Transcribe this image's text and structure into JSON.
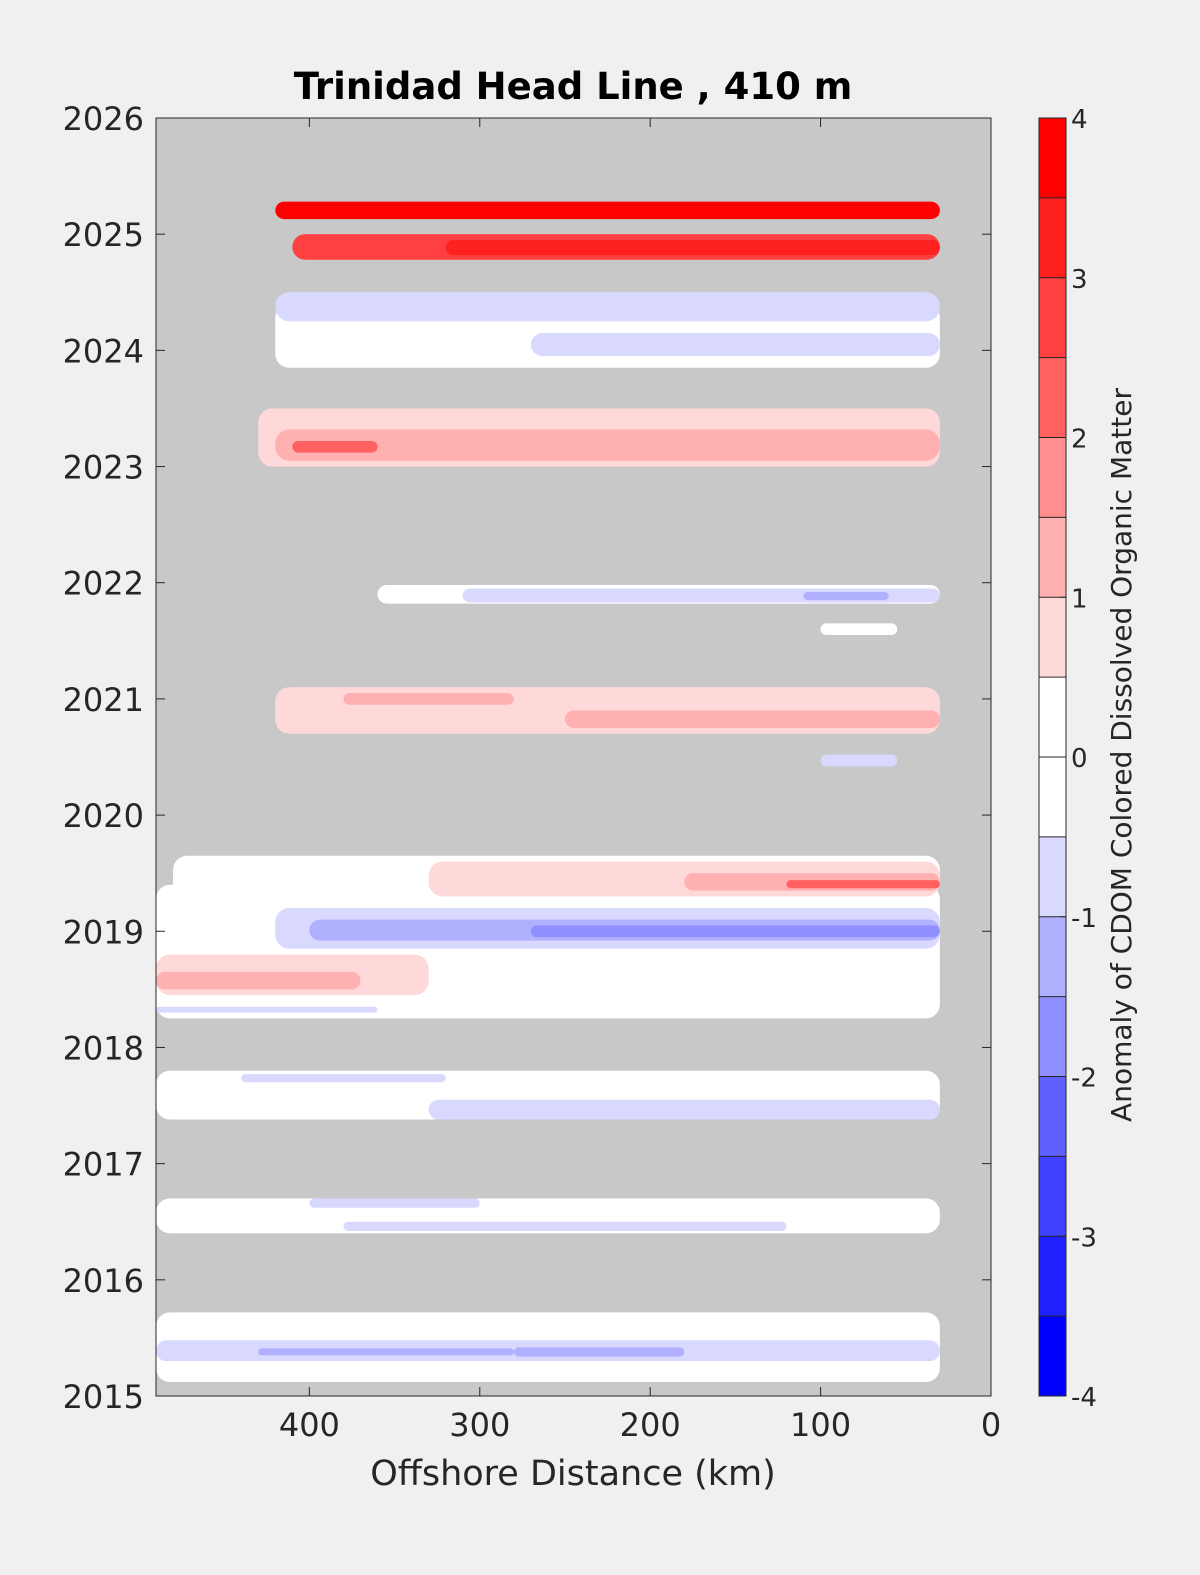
{
  "chart_data": {
    "type": "heatmap",
    "title": "Trinidad Head Line , 410 m",
    "xlabel": "Offshore Distance (km)",
    "ylabel": "",
    "xlim": [
      490,
      0
    ],
    "ylim": [
      2015,
      2026
    ],
    "x_reversed": true,
    "x_ticks": [
      400,
      300,
      200,
      100,
      0
    ],
    "y_ticks": [
      2015,
      2016,
      2017,
      2018,
      2019,
      2020,
      2021,
      2022,
      2023,
      2024,
      2025,
      2026
    ],
    "colorbar": {
      "label": "Anomaly of CDOM Colored Dissolved Organic Matter",
      "ticks": [
        4,
        3,
        2,
        1,
        0,
        -1,
        -2,
        -3,
        -4
      ],
      "levels": [
        {
          "min": 3.5,
          "max": 4.0,
          "color": "#ff0000"
        },
        {
          "min": 3.0,
          "max": 3.5,
          "color": "#ff2020"
        },
        {
          "min": 2.5,
          "max": 3.0,
          "color": "#ff4040"
        },
        {
          "min": 2.0,
          "max": 2.5,
          "color": "#ff6060"
        },
        {
          "min": 1.5,
          "max": 2.0,
          "color": "#ff8f8f"
        },
        {
          "min": 1.0,
          "max": 1.5,
          "color": "#ffb0b0"
        },
        {
          "min": 0.5,
          "max": 1.0,
          "color": "#ffd9d9"
        },
        {
          "min": 0.0,
          "max": 0.5,
          "color": "#ffffff"
        },
        {
          "min": -0.5,
          "max": 0.0,
          "color": "#ffffff"
        },
        {
          "min": -1.0,
          "max": -0.5,
          "color": "#d9d9ff"
        },
        {
          "min": -1.5,
          "max": -1.0,
          "color": "#b0b0ff"
        },
        {
          "min": -2.0,
          "max": -1.5,
          "color": "#8f8fff"
        },
        {
          "min": -2.5,
          "max": -2.0,
          "color": "#6060ff"
        },
        {
          "min": -3.0,
          "max": -2.5,
          "color": "#4040ff"
        },
        {
          "min": -3.5,
          "max": -3.0,
          "color": "#2020ff"
        },
        {
          "min": -4.0,
          "max": -3.5,
          "color": "#0000ff"
        }
      ]
    },
    "no_data_color": "#c8c8c8",
    "bands": [
      {
        "t0": 2015.12,
        "t1": 2015.72,
        "x0": 490,
        "x1": 30,
        "value": -0.2
      },
      {
        "t0": 2015.3,
        "t1": 2015.48,
        "x0": 490,
        "x1": 30,
        "value": -0.7
      },
      {
        "t0": 2015.35,
        "t1": 2015.41,
        "x0": 430,
        "x1": 280,
        "value": -1.2
      },
      {
        "t0": 2015.34,
        "t1": 2015.42,
        "x0": 280,
        "x1": 180,
        "value": -1.2
      },
      {
        "t0": 2016.4,
        "t1": 2016.7,
        "x0": 490,
        "x1": 30,
        "value": 0.1
      },
      {
        "t0": 2016.42,
        "t1": 2016.5,
        "x0": 380,
        "x1": 120,
        "value": -0.6
      },
      {
        "t0": 2016.62,
        "t1": 2016.7,
        "x0": 400,
        "x1": 300,
        "value": -0.6
      },
      {
        "t0": 2017.38,
        "t1": 2017.8,
        "x0": 490,
        "x1": 30,
        "value": 0.1
      },
      {
        "t0": 2017.38,
        "t1": 2017.55,
        "x0": 330,
        "x1": 30,
        "value": -0.7
      },
      {
        "t0": 2017.7,
        "t1": 2017.77,
        "x0": 440,
        "x1": 320,
        "value": -0.6
      },
      {
        "t0": 2018.25,
        "t1": 2019.4,
        "x0": 490,
        "x1": 30,
        "value": 0.0
      },
      {
        "t0": 2018.3,
        "t1": 2018.35,
        "x0": 490,
        "x1": 360,
        "value": -0.6
      },
      {
        "t0": 2018.45,
        "t1": 2018.8,
        "x0": 490,
        "x1": 330,
        "value": 0.8
      },
      {
        "t0": 2018.5,
        "t1": 2018.65,
        "x0": 490,
        "x1": 370,
        "value": 1.2
      },
      {
        "t0": 2018.85,
        "t1": 2019.2,
        "x0": 420,
        "x1": 30,
        "value": -0.8
      },
      {
        "t0": 2018.92,
        "t1": 2019.1,
        "x0": 400,
        "x1": 30,
        "value": -1.3
      },
      {
        "t0": 2018.95,
        "t1": 2019.05,
        "x0": 270,
        "x1": 30,
        "value": -1.8
      },
      {
        "t0": 2019.3,
        "t1": 2019.65,
        "x0": 480,
        "x1": 30,
        "value": 0.1
      },
      {
        "t0": 2019.3,
        "t1": 2019.6,
        "x0": 330,
        "x1": 30,
        "value": 0.8
      },
      {
        "t0": 2019.35,
        "t1": 2019.5,
        "x0": 180,
        "x1": 30,
        "value": 1.3
      },
      {
        "t0": 2019.37,
        "t1": 2019.44,
        "x0": 120,
        "x1": 30,
        "value": 2.1
      },
      {
        "t0": 2020.42,
        "t1": 2020.52,
        "x0": 100,
        "x1": 55,
        "value": -0.7
      },
      {
        "t0": 2020.7,
        "t1": 2021.1,
        "x0": 420,
        "x1": 30,
        "value": 0.7
      },
      {
        "t0": 2020.75,
        "t1": 2020.9,
        "x0": 250,
        "x1": 30,
        "value": 1.2
      },
      {
        "t0": 2020.95,
        "t1": 2021.05,
        "x0": 380,
        "x1": 280,
        "value": 1.2
      },
      {
        "t0": 2021.55,
        "t1": 2021.65,
        "x0": 100,
        "x1": 55,
        "value": 0.2
      },
      {
        "t0": 2021.82,
        "t1": 2021.98,
        "x0": 360,
        "x1": 30,
        "value": 0.1
      },
      {
        "t0": 2021.83,
        "t1": 2021.95,
        "x0": 310,
        "x1": 30,
        "value": -0.6
      },
      {
        "t0": 2021.85,
        "t1": 2021.92,
        "x0": 110,
        "x1": 60,
        "value": -1.1
      },
      {
        "t0": 2023.0,
        "t1": 2023.5,
        "x0": 430,
        "x1": 30,
        "value": 0.8
      },
      {
        "t0": 2023.05,
        "t1": 2023.32,
        "x0": 420,
        "x1": 30,
        "value": 1.3
      },
      {
        "t0": 2023.12,
        "t1": 2023.22,
        "x0": 410,
        "x1": 360,
        "value": 2.1
      },
      {
        "t0": 2023.85,
        "t1": 2024.4,
        "x0": 420,
        "x1": 30,
        "value": 0.1
      },
      {
        "t0": 2023.95,
        "t1": 2024.15,
        "x0": 270,
        "x1": 30,
        "value": -0.7
      },
      {
        "t0": 2024.25,
        "t1": 2024.5,
        "x0": 420,
        "x1": 30,
        "value": -0.6
      },
      {
        "t0": 2024.78,
        "t1": 2025.0,
        "x0": 410,
        "x1": 30,
        "value": 2.7
      },
      {
        "t0": 2024.82,
        "t1": 2024.95,
        "x0": 320,
        "x1": 30,
        "value": 3.4
      },
      {
        "t0": 2025.13,
        "t1": 2025.28,
        "x0": 420,
        "x1": 30,
        "value": 3.6
      }
    ]
  }
}
